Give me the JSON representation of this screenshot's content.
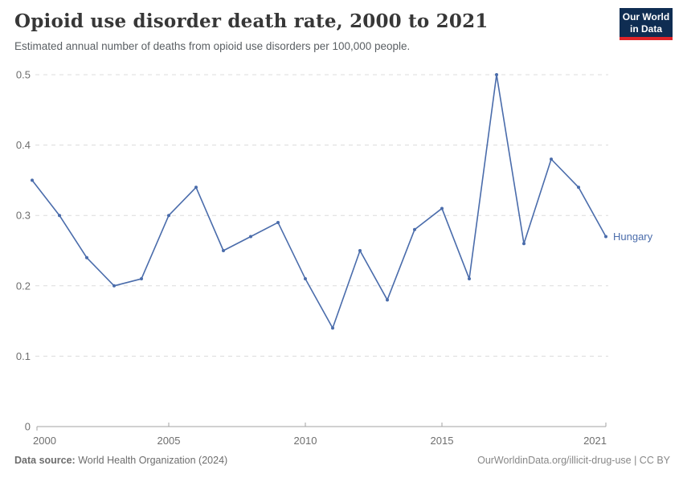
{
  "header": {
    "title": "Opioid use disorder death rate, 2000 to 2021",
    "subtitle": "Estimated annual number of deaths from opioid use disorders per 100,000 people."
  },
  "logo": {
    "line1": "Our World",
    "line2": "in Data",
    "bg_color": "#0f2d52",
    "accent_color": "#e02428"
  },
  "footer": {
    "source_label": "Data source:",
    "source_value": " World Health Organization (2024)",
    "credit": "OurWorldinData.org/illicit-drug-use | CC BY"
  },
  "chart_data": {
    "type": "line",
    "title": "Opioid use disorder death rate, 2000 to 2021",
    "xlabel": "",
    "ylabel": "",
    "x": [
      2000,
      2001,
      2002,
      2003,
      2004,
      2005,
      2006,
      2007,
      2008,
      2009,
      2010,
      2011,
      2012,
      2013,
      2014,
      2015,
      2016,
      2017,
      2018,
      2019,
      2020,
      2021
    ],
    "series": [
      {
        "name": "Hungary",
        "color": "#4a6cab",
        "values": [
          0.35,
          0.3,
          0.24,
          0.2,
          0.21,
          0.3,
          0.34,
          0.25,
          0.27,
          0.29,
          0.21,
          0.14,
          0.25,
          0.18,
          0.28,
          0.31,
          0.21,
          0.5,
          0.26,
          0.38,
          0.34,
          0.27
        ]
      }
    ],
    "xlim": [
      2000,
      2021
    ],
    "ylim": [
      0,
      0.5
    ],
    "yticks": [
      0,
      0.1,
      0.2,
      0.3,
      0.4,
      0.5
    ],
    "xticks": [
      2000,
      2005,
      2010,
      2015,
      2021
    ],
    "grid": true,
    "gridline_color": "#dcdcdc",
    "axis_color": "#a3a3a3",
    "tick_label_color": "#6e6e6e",
    "legend_position": "end-of-line"
  }
}
